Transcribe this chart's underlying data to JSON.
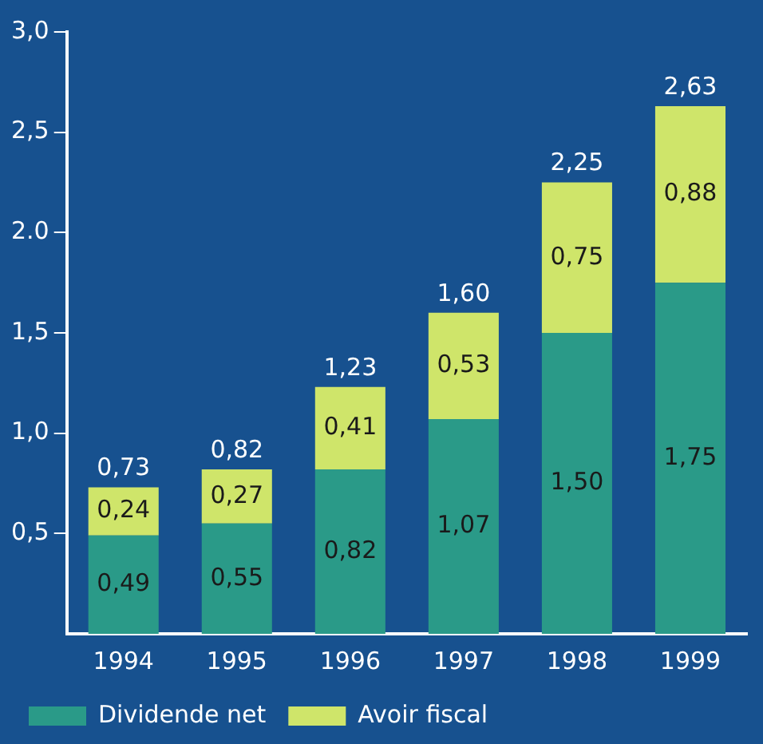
{
  "chart_data": {
    "type": "bar",
    "stacked": true,
    "categories": [
      "1994",
      "1995",
      "1996",
      "1997",
      "1998",
      "1999"
    ],
    "series": [
      {
        "name": "Dividende net",
        "color": "#2a9a88",
        "values": [
          0.49,
          0.55,
          0.82,
          1.07,
          1.5,
          1.75
        ],
        "value_labels": [
          "0,49",
          "0,55",
          "0,82",
          "1,07",
          "1,50",
          "1,75"
        ]
      },
      {
        "name": "Avoir fiscal",
        "color": "#cfe56a",
        "values": [
          0.24,
          0.27,
          0.41,
          0.53,
          0.75,
          0.88
        ],
        "value_labels": [
          "0,24",
          "0,27",
          "0,41",
          "0,53",
          "0,75",
          "0,88"
        ]
      }
    ],
    "totals": [
      "0,73",
      "0,82",
      "1,23",
      "1,60",
      "2,25",
      "2,63"
    ],
    "ylim": [
      0,
      3.0
    ],
    "yticks": [
      {
        "value": 0.5,
        "label": "0,5"
      },
      {
        "value": 1.0,
        "label": "1,0"
      },
      {
        "value": 1.5,
        "label": "1,5"
      },
      {
        "value": 2.0,
        "label": "2.0"
      },
      {
        "value": 2.5,
        "label": "2,5"
      },
      {
        "value": 3.0,
        "label": "3,0"
      }
    ],
    "grid": false,
    "legend": "bottom"
  }
}
